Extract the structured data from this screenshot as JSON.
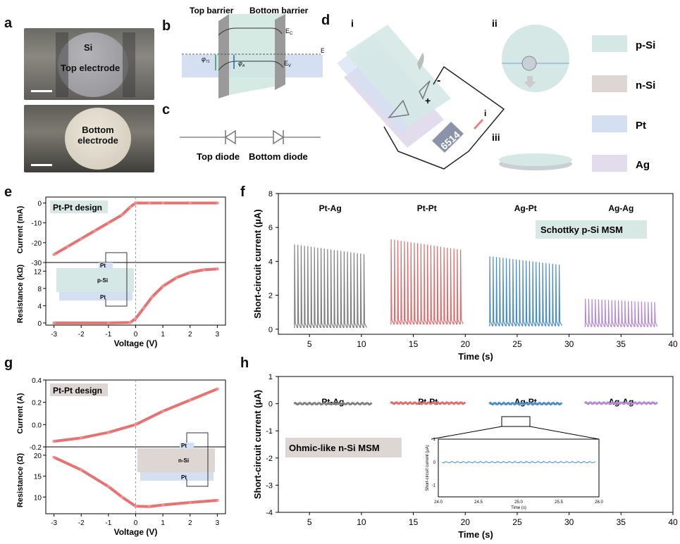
{
  "panel_letters": {
    "a": "a",
    "b": "b",
    "c": "c",
    "d": "d",
    "e": "e",
    "f": "f",
    "g": "g",
    "h": "h"
  },
  "panel_a": {
    "top_label_1": "Si",
    "top_label_2": "Top electrode",
    "bottom_label_1": "Bottom",
    "bottom_label_2": "electrode"
  },
  "panel_b": {
    "top_barrier": "Top barrier",
    "bottom_barrier": "Bottom barrier",
    "ec": "E",
    "ec_sub": "C",
    "ef": "E",
    "ef_sub": "F",
    "ev": "E",
    "ev_sub": "V",
    "phi_t": "φ",
    "phi_t_sub": "T1",
    "phi_b": "φ",
    "phi_b_sub": "A"
  },
  "panel_c": {
    "top_diode": "Top diode",
    "bottom_diode": "Bottom diode"
  },
  "panel_d": {
    "sub_i": "i",
    "sub_ii": "ii",
    "sub_iii": "iii",
    "minus": "-",
    "plus": "+",
    "meter": "6514",
    "arrow_i": "i",
    "legend": [
      {
        "label": "p-Si",
        "color": "#d5e8e5"
      },
      {
        "label": "n-Si",
        "color": "#ddd6d2"
      },
      {
        "label": "Pt",
        "color": "#d4e0f2"
      },
      {
        "label": "Ag",
        "color": "#e2dcec"
      }
    ]
  },
  "panel_e": {
    "design": "Pt-Pt design",
    "ylabel_top": "Current (mA)",
    "ylabel_bottom": "Resistance (kΩ)",
    "xlabel": "Voltage (V)",
    "xticks": [
      "-3",
      "-2",
      "-1",
      "0",
      "1",
      "2",
      "3"
    ],
    "yticks_top": [
      "0",
      "-10",
      "-20",
      "-30"
    ],
    "yticks_bottom": [
      "12",
      "8",
      "4",
      "0"
    ],
    "inset": {
      "top": "Pt",
      "mid": "p-Si",
      "bottom": "Pt"
    }
  },
  "panel_g": {
    "design": "Pt-Pt design",
    "ylabel_top": "Current (A)",
    "ylabel_bottom": "Resistance (Ω)",
    "xlabel": "Voltage (V)",
    "xticks": [
      "-3",
      "-2",
      "-1",
      "0",
      "1",
      "2",
      "3"
    ],
    "yticks_top": [
      "0.4",
      "0.2",
      "0.0",
      "-0.2"
    ],
    "yticks_bottom": [
      "20",
      "15",
      "10"
    ],
    "inset": {
      "top": "Pt",
      "mid": "n-Si",
      "bottom": "Pt"
    }
  },
  "panel_f": {
    "ylabel": "Short-circuit current (μA)",
    "xlabel": "Time (s)",
    "annotation": "Schottky p-Si MSM",
    "xticks": [
      "5",
      "10",
      "15",
      "20",
      "25",
      "30",
      "35",
      "40"
    ],
    "yticks": [
      "8",
      "6",
      "4",
      "2",
      "0"
    ],
    "groups": [
      "Pt-Ag",
      "Pt-Pt",
      "Ag-Pt",
      "Ag-Ag"
    ]
  },
  "panel_h": {
    "ylabel": "Short-circuit current (μA)",
    "xlabel": "Time (s)",
    "annotation": "Ohmic-like n-Si MSM",
    "xticks": [
      "5",
      "10",
      "15",
      "20",
      "25",
      "30",
      "35",
      "40"
    ],
    "yticks": [
      "1",
      "0",
      "-1",
      "-2",
      "-3",
      "-4"
    ],
    "groups": [
      "Pt-Ag",
      "Pt-Pt",
      "Ag-Pt",
      "Ag-Ag"
    ],
    "inset": {
      "ylabel": "Short-circuit current (μA)",
      "xlabel": "Time (s)",
      "yticks": [
        "1",
        "0",
        "-1"
      ],
      "xticks": [
        "24.0",
        "24.5",
        "25.0",
        "25.5",
        "26.0"
      ]
    }
  },
  "chart_data": [
    {
      "type": "line",
      "panel": "e-top",
      "xlabel": "Voltage (V)",
      "ylabel": "Current (mA)",
      "xlim": [
        -3.3,
        3.3
      ],
      "ylim": [
        -30,
        3
      ],
      "x": [
        -3,
        -2.5,
        -2,
        -1.5,
        -1,
        -0.5,
        -0.2,
        0,
        0.5,
        1,
        2,
        3
      ],
      "y": [
        -26,
        -22,
        -18,
        -14,
        -10,
        -6,
        -2,
        0,
        0,
        0,
        0,
        0
      ]
    },
    {
      "type": "line",
      "panel": "e-bottom",
      "xlabel": "Voltage (V)",
      "ylabel": "Resistance (kΩ)",
      "xlim": [
        -3.3,
        3.3
      ],
      "ylim": [
        -0.5,
        14
      ],
      "x": [
        -3,
        -1,
        -0.2,
        0,
        0.3,
        0.6,
        1,
        1.5,
        2,
        2.5,
        3
      ],
      "y": [
        0,
        0,
        0.1,
        1,
        3.5,
        6,
        8.5,
        10.5,
        11.7,
        12.3,
        12.5
      ]
    },
    {
      "type": "line",
      "panel": "g-top",
      "xlabel": "Voltage (V)",
      "ylabel": "Current (A)",
      "xlim": [
        -3.3,
        3.3
      ],
      "ylim": [
        -0.2,
        0.4
      ],
      "x": [
        -3,
        -2,
        -1,
        0,
        1,
        2,
        3
      ],
      "y": [
        -0.15,
        -0.12,
        -0.07,
        0,
        0.12,
        0.22,
        0.32
      ]
    },
    {
      "type": "line",
      "panel": "g-bottom",
      "xlabel": "Voltage (V)",
      "ylabel": "Resistance (Ω)",
      "xlim": [
        -3.3,
        3.3
      ],
      "ylim": [
        6,
        22
      ],
      "x": [
        -3,
        -2,
        -1,
        -0.5,
        0,
        0.5,
        1,
        2,
        3
      ],
      "y": [
        19.5,
        16.5,
        12.5,
        10,
        7.8,
        7.7,
        8.1,
        8.7,
        9.2
      ]
    },
    {
      "type": "line",
      "panel": "f",
      "xlabel": "Time (s)",
      "ylabel": "Short-circuit current (μA)",
      "xlim": [
        2,
        40
      ],
      "ylim": [
        -0.3,
        8
      ],
      "series": [
        {
          "name": "Pt-Ag",
          "x_range": [
            3.5,
            10.5
          ],
          "peak": 5.0,
          "base": 0.1,
          "color": "#808080"
        },
        {
          "name": "Pt-Pt",
          "x_range": [
            12.8,
            19.8
          ],
          "peak": 5.3,
          "base": 0.3,
          "color": "#e06c6c"
        },
        {
          "name": "Ag-Pt",
          "x_range": [
            22.3,
            29.3
          ],
          "peak": 4.3,
          "base": 0.2,
          "color": "#4a8cc8"
        },
        {
          "name": "Ag-Ag",
          "x_range": [
            31.5,
            38.5
          ],
          "peak": 1.8,
          "base": 0.15,
          "color": "#b58ad4"
        }
      ]
    },
    {
      "type": "line",
      "panel": "h",
      "xlabel": "Time (s)",
      "ylabel": "Short-circuit current (μA)",
      "xlim": [
        2,
        40
      ],
      "ylim": [
        -4,
        1
      ],
      "series": [
        {
          "name": "Pt-Ag",
          "x_range": [
            3.5,
            11
          ],
          "level": 0,
          "color": "#808080"
        },
        {
          "name": "Pt-Pt",
          "x_range": [
            12.8,
            20
          ],
          "level": 0.02,
          "color": "#e06c6c"
        },
        {
          "name": "Ag-Pt",
          "x_range": [
            22.3,
            29.3
          ],
          "level": 0,
          "color": "#4a8cc8"
        },
        {
          "name": "Ag-Ag",
          "x_range": [
            31.5,
            38.5
          ],
          "level": 0.02,
          "color": "#b58ad4"
        }
      ]
    }
  ]
}
